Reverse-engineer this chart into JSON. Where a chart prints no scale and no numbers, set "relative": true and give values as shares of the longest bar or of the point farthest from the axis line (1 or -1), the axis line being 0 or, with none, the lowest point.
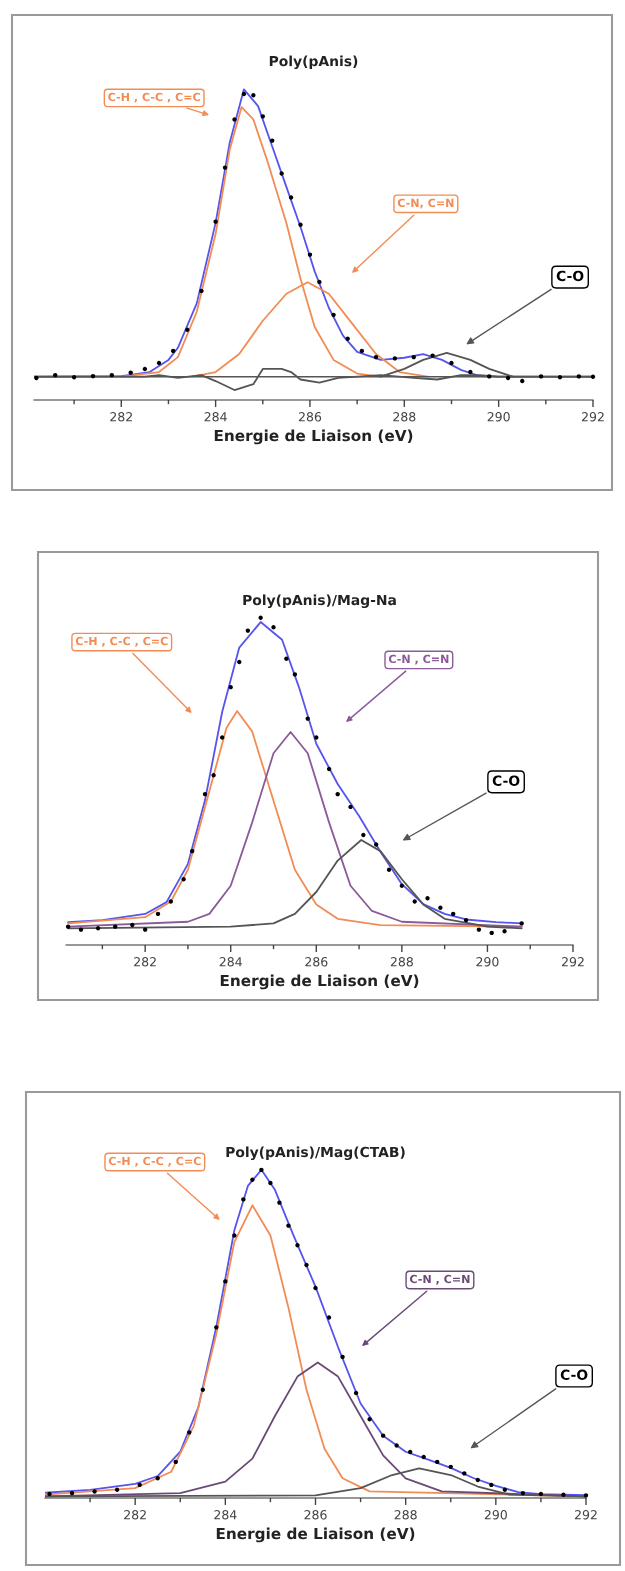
{
  "chart_data": [
    {
      "type": "line",
      "title": "Poly(pAnis)",
      "xlabel": "Energie de Liaison (eV)",
      "relative": true,
      "tick_labels": "x",
      "grid": false,
      "xlim": [
        280.15,
        292
      ],
      "xticks": [
        {
          "value": 281,
          "label": null
        },
        282,
        {
          "value": 283,
          "label": null
        },
        284,
        {
          "value": 285,
          "label": null
        },
        286,
        {
          "value": 287,
          "label": null
        },
        288,
        {
          "value": 289,
          "label": null
        },
        290,
        {
          "value": 291,
          "label": null
        },
        292
      ],
      "ref_lines": [
        {
          "axis": "y",
          "value": 0.075,
          "color": "#555555"
        }
      ],
      "annotations": [
        "C-H , C-C , C=C",
        "C-N, C=N",
        "C-O"
      ],
      "series": [
        {
          "type": "scatter",
          "marker": "circle",
          "color": "#000000",
          "x": [
            280.2,
            280.6,
            281.0,
            281.4,
            281.8,
            282.2,
            282.5,
            282.8,
            283.1,
            283.4,
            283.7,
            284.0,
            284.2,
            284.4,
            284.6,
            284.8,
            285.0,
            285.2,
            285.4,
            285.6,
            285.8,
            286.0,
            286.2,
            286.5,
            286.8,
            287.1,
            287.4,
            287.8,
            288.2,
            288.6,
            289.0,
            289.4,
            289.8,
            290.2,
            290.5,
            290.9,
            291.3,
            291.7,
            292.0
          ],
          "values": [
            0.071,
            0.08,
            0.073,
            0.077,
            0.08,
            0.088,
            0.1,
            0.119,
            0.158,
            0.226,
            0.351,
            0.574,
            0.748,
            0.903,
            0.985,
            0.981,
            0.913,
            0.835,
            0.729,
            0.652,
            0.564,
            0.468,
            0.38,
            0.274,
            0.197,
            0.158,
            0.138,
            0.134,
            0.138,
            0.143,
            0.119,
            0.09,
            0.076,
            0.071,
            0.061,
            0.076,
            0.073,
            0.076,
            0.075
          ]
        },
        {
          "type": "line",
          "color": "#5555ee",
          "x": [
            280.15,
            282,
            282.6,
            283.0,
            283.2,
            283.6,
            284.0,
            284.3,
            284.6,
            284.9,
            285.2,
            285.5,
            285.8,
            286.1,
            286.4,
            286.7,
            287.0,
            287.5,
            288.0,
            288.4,
            288.8,
            289.2,
            289.6,
            290,
            292
          ],
          "values": [
            0.075,
            0.077,
            0.09,
            0.129,
            0.168,
            0.311,
            0.57,
            0.829,
            1.0,
            0.946,
            0.816,
            0.686,
            0.557,
            0.414,
            0.297,
            0.207,
            0.155,
            0.129,
            0.136,
            0.148,
            0.129,
            0.097,
            0.077,
            0.075,
            0.075
          ]
        },
        {
          "type": "line",
          "color": "#f28c55",
          "x": [
            282,
            282.8,
            283.2,
            283.6,
            284.0,
            284.3,
            284.55,
            284.8,
            285.1,
            285.5,
            285.8,
            286.1,
            286.5,
            287,
            287.5
          ],
          "values": [
            0.075,
            0.09,
            0.138,
            0.284,
            0.535,
            0.806,
            0.943,
            0.903,
            0.768,
            0.57,
            0.39,
            0.235,
            0.129,
            0.085,
            0.075
          ]
        },
        {
          "type": "line",
          "color": "#f28c55",
          "x": [
            283.5,
            284,
            284.5,
            285,
            285.5,
            285.95,
            286.4,
            286.9,
            287.4,
            287.9,
            288.5
          ],
          "values": [
            0.075,
            0.09,
            0.148,
            0.255,
            0.342,
            0.379,
            0.342,
            0.245,
            0.148,
            0.09,
            0.075
          ]
        },
        {
          "type": "line",
          "color": "#555555",
          "x": [
            287.5,
            288,
            288.4,
            288.9,
            289.4,
            289.8,
            290.3
          ],
          "values": [
            0.075,
            0.1,
            0.129,
            0.152,
            0.129,
            0.1,
            0.075
          ]
        },
        {
          "type": "line",
          "color": "#555555",
          "x": [
            280.15,
            282.5,
            282.8,
            283.2,
            283.7,
            284.0,
            284.4,
            284.8,
            285.0,
            285.4,
            285.6,
            285.8,
            286.2,
            286.6,
            287.5,
            288.2,
            288.7,
            289.2,
            289.6,
            290,
            292
          ],
          "values": [
            0.075,
            0.075,
            0.08,
            0.071,
            0.08,
            0.061,
            0.032,
            0.051,
            0.1,
            0.1,
            0.09,
            0.066,
            0.056,
            0.071,
            0.08,
            0.071,
            0.066,
            0.08,
            0.08,
            0.075,
            0.075
          ]
        }
      ]
    },
    {
      "type": "line",
      "title": "Poly(pAnis)/Mag-Na",
      "xlabel": "Energie de Liaison (eV)",
      "relative": true,
      "tick_labels": "x",
      "grid": false,
      "xlim": [
        280.15,
        292
      ],
      "xticks": [
        {
          "value": 281,
          "label": null
        },
        282,
        {
          "value": 283,
          "label": null
        },
        284,
        {
          "value": 285,
          "label": null
        },
        286,
        {
          "value": 287,
          "label": null
        },
        288,
        {
          "value": 289,
          "label": null
        },
        290,
        {
          "value": 291,
          "label": null
        },
        292
      ],
      "annotations": [
        "C-H , C-C , C=C",
        "C-N , C=N",
        "C-O"
      ],
      "series": [
        {
          "type": "scatter",
          "marker": "circle",
          "color": "#000000",
          "x": [
            280.2,
            280.5,
            280.9,
            281.3,
            281.7,
            282.0,
            282.3,
            282.6,
            282.9,
            283.1,
            283.4,
            283.6,
            283.8,
            284.0,
            284.2,
            284.4,
            284.7,
            285.0,
            285.3,
            285.5,
            285.8,
            286.0,
            286.3,
            286.5,
            286.8,
            287.1,
            287.4,
            287.7,
            288.0,
            288.3,
            288.6,
            288.9,
            289.2,
            289.5,
            289.8,
            290.1,
            290.4,
            290.8
          ],
          "values": [
            0.056,
            0.047,
            0.051,
            0.056,
            0.061,
            0.047,
            0.095,
            0.133,
            0.201,
            0.287,
            0.461,
            0.519,
            0.634,
            0.788,
            0.865,
            0.961,
            1.0,
            0.971,
            0.875,
            0.827,
            0.692,
            0.634,
            0.538,
            0.461,
            0.422,
            0.336,
            0.307,
            0.23,
            0.181,
            0.133,
            0.143,
            0.114,
            0.095,
            0.076,
            0.047,
            0.037,
            0.042,
            0.066
          ]
        },
        {
          "type": "line",
          "color": "#5555ee",
          "x": [
            280.2,
            281,
            282,
            282.5,
            283,
            283.4,
            283.8,
            284.2,
            284.7,
            285.2,
            285.6,
            286,
            286.5,
            287,
            287.5,
            288,
            288.5,
            289,
            289.5,
            290.2,
            290.8
          ],
          "values": [
            0.07,
            0.076,
            0.095,
            0.131,
            0.248,
            0.443,
            0.712,
            0.909,
            0.987,
            0.933,
            0.786,
            0.615,
            0.492,
            0.394,
            0.285,
            0.186,
            0.125,
            0.095,
            0.078,
            0.07,
            0.066
          ]
        },
        {
          "type": "line",
          "color": "#f28c55",
          "x": [
            280.2,
            282,
            282.6,
            283,
            283.5,
            283.9,
            284.15,
            284.5,
            285,
            285.5,
            286,
            286.5,
            287.5,
            290.8
          ],
          "values": [
            0.066,
            0.085,
            0.133,
            0.23,
            0.47,
            0.663,
            0.715,
            0.653,
            0.441,
            0.23,
            0.124,
            0.08,
            0.061,
            0.056
          ]
        },
        {
          "type": "line",
          "color": "#8a5a9a",
          "x": [
            280.2,
            283,
            283.5,
            284,
            284.5,
            285,
            285.4,
            285.8,
            286.3,
            286.8,
            287.3,
            288,
            290.8
          ],
          "values": [
            0.056,
            0.071,
            0.095,
            0.181,
            0.374,
            0.586,
            0.651,
            0.586,
            0.374,
            0.181,
            0.104,
            0.071,
            0.056
          ]
        },
        {
          "type": "line",
          "color": "#555555",
          "x": [
            280.2,
            284,
            285,
            285.5,
            286,
            286.5,
            287.05,
            287.5,
            288,
            288.5,
            289,
            290,
            290.8
          ],
          "values": [
            0.051,
            0.056,
            0.066,
            0.095,
            0.162,
            0.258,
            0.321,
            0.287,
            0.201,
            0.124,
            0.08,
            0.056,
            0.051
          ]
        }
      ]
    },
    {
      "type": "line",
      "title": "Poly(pAnis)/Mag(CTAB)",
      "xlabel": "Energie de Liaison (eV)",
      "relative": true,
      "tick_labels": "x",
      "grid": false,
      "xlim": [
        280,
        292
      ],
      "xticks": [
        {
          "value": 281,
          "label": null
        },
        282,
        {
          "value": 283,
          "label": null
        },
        284,
        {
          "value": 285,
          "label": null
        },
        286,
        {
          "value": 287,
          "label": null
        },
        288,
        {
          "value": 289,
          "label": null
        },
        290,
        {
          "value": 291,
          "label": null
        },
        292
      ],
      "annotations": [
        "C-H , C-C , C=C",
        "C-N , C=N",
        "C-O"
      ],
      "series": [
        {
          "type": "scatter",
          "marker": "circle",
          "color": "#000000",
          "x": [
            280.1,
            280.6,
            281.1,
            281.6,
            282.1,
            282.5,
            282.9,
            283.2,
            283.5,
            283.8,
            284.0,
            284.2,
            284.4,
            284.6,
            284.8,
            285.0,
            285.2,
            285.4,
            285.6,
            285.8,
            286.0,
            286.3,
            286.6,
            286.9,
            287.2,
            287.5,
            287.8,
            288.1,
            288.4,
            288.7,
            289.0,
            289.3,
            289.6,
            289.9,
            290.2,
            290.6,
            291.0,
            291.5,
            292.0
          ],
          "values": [
            0.012,
            0.015,
            0.02,
            0.025,
            0.04,
            0.06,
            0.11,
            0.2,
            0.33,
            0.52,
            0.66,
            0.8,
            0.91,
            0.97,
            1.0,
            0.96,
            0.9,
            0.83,
            0.77,
            0.71,
            0.64,
            0.55,
            0.43,
            0.32,
            0.24,
            0.19,
            0.16,
            0.14,
            0.125,
            0.11,
            0.095,
            0.075,
            0.055,
            0.04,
            0.025,
            0.015,
            0.012,
            0.01,
            0.008
          ]
        },
        {
          "type": "line",
          "color": "#5555ee",
          "x": [
            280,
            281,
            282,
            282.5,
            283,
            283.4,
            283.8,
            284.2,
            284.5,
            284.8,
            285.1,
            285.5,
            286,
            286.5,
            287,
            287.5,
            288,
            288.5,
            289,
            289.5,
            290,
            290.5,
            291,
            292
          ],
          "values": [
            0.016,
            0.025,
            0.043,
            0.067,
            0.141,
            0.276,
            0.521,
            0.816,
            0.951,
            1.0,
            0.939,
            0.804,
            0.644,
            0.46,
            0.288,
            0.19,
            0.141,
            0.117,
            0.092,
            0.061,
            0.037,
            0.018,
            0.012,
            0.009
          ]
        },
        {
          "type": "line",
          "color": "#f28c55",
          "x": [
            280,
            282,
            282.8,
            283.3,
            283.8,
            284.2,
            284.6,
            285,
            285.4,
            285.8,
            286.2,
            286.6,
            287.2,
            292
          ],
          "values": [
            0.01,
            0.03,
            0.08,
            0.22,
            0.5,
            0.78,
            0.892,
            0.8,
            0.58,
            0.33,
            0.15,
            0.06,
            0.02,
            0.005
          ]
        },
        {
          "type": "line",
          "color": "#6b4a78",
          "x": [
            280,
            283,
            284,
            284.6,
            285.1,
            285.6,
            286.05,
            286.5,
            287,
            287.5,
            288,
            288.8,
            292
          ],
          "values": [
            0.005,
            0.015,
            0.05,
            0.12,
            0.25,
            0.37,
            0.413,
            0.37,
            0.25,
            0.13,
            0.06,
            0.02,
            0.005
          ]
        },
        {
          "type": "line",
          "color": "#555555",
          "x": [
            280,
            286,
            287,
            287.7,
            288.3,
            289,
            289.6,
            290.3,
            292
          ],
          "values": [
            0.005,
            0.008,
            0.03,
            0.07,
            0.09,
            0.07,
            0.035,
            0.01,
            0.005
          ]
        }
      ]
    }
  ]
}
